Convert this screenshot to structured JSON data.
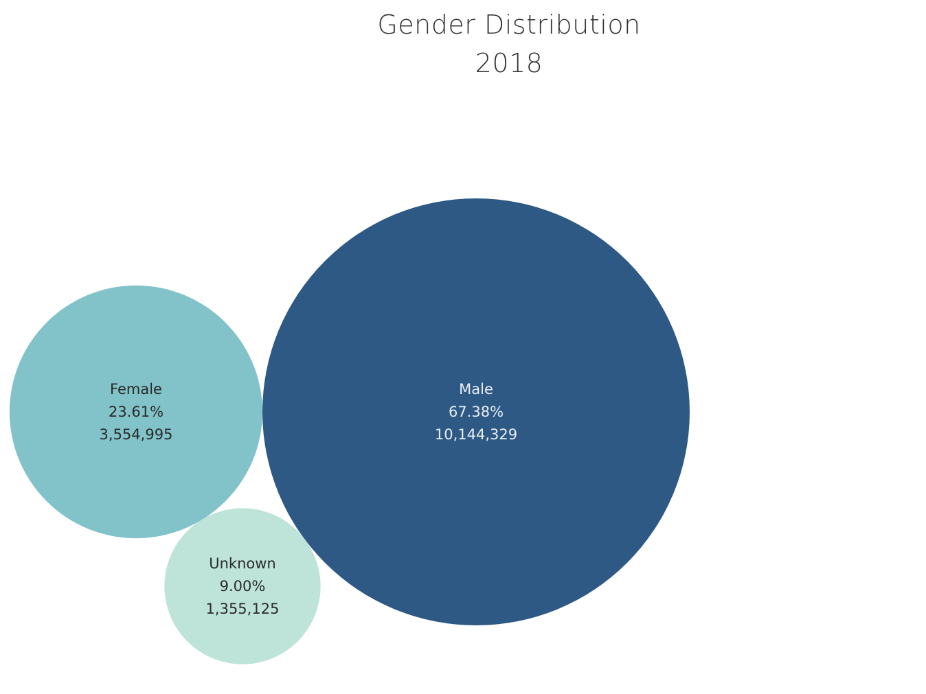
{
  "chart_data": {
    "type": "bubble",
    "title": "Gender Distribution",
    "subtitle": "2018",
    "bubbles": [
      {
        "name": "Female",
        "percent_label": "23.61%",
        "value_label": "3,554,995",
        "value": 3554995,
        "color": "#82c2c9",
        "text_color": "#2a2a2a"
      },
      {
        "name": "Male",
        "percent_label": "67.38%",
        "value_label": "10,144,329",
        "value": 10144329,
        "color": "#2e5985",
        "text_color": "#e8eef5"
      },
      {
        "name": "Unknown",
        "percent_label": "9.00%",
        "value_label": "1,355,125",
        "value": 1355125,
        "color": "#bee4da",
        "text_color": "#2a2a2a"
      }
    ]
  }
}
